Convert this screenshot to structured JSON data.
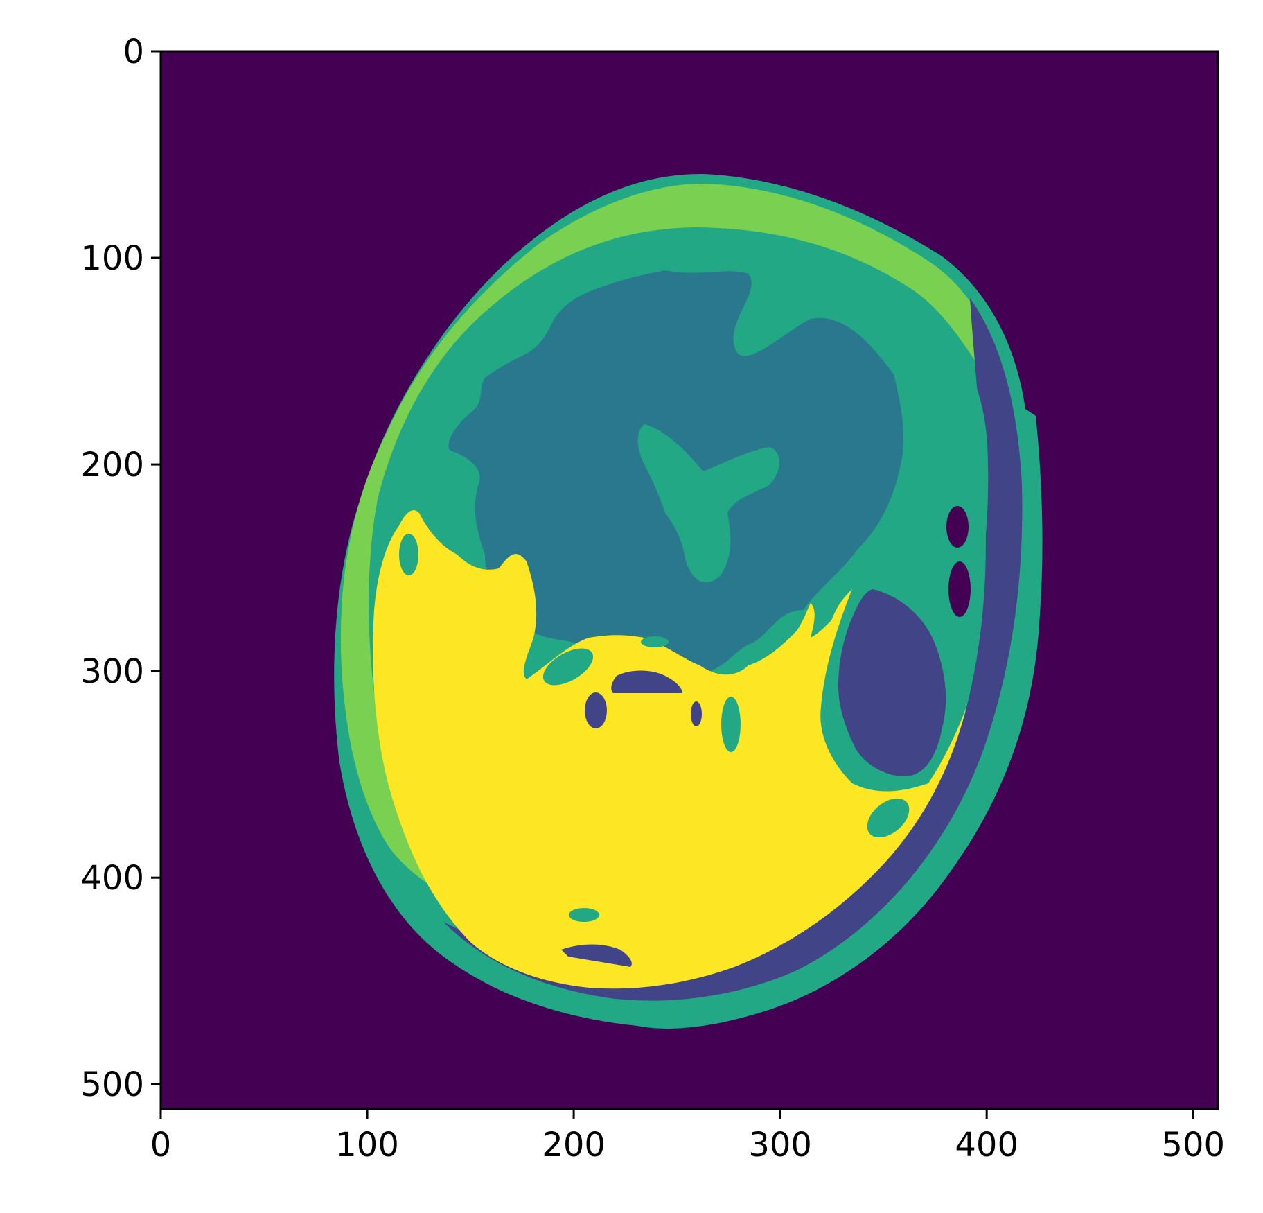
{
  "chart_data": {
    "type": "heatmap",
    "title": "",
    "xlabel": "",
    "ylabel": "",
    "xlim": [
      0,
      512
    ],
    "ylim": [
      512,
      0
    ],
    "x_ticks": [
      0,
      100,
      200,
      300,
      400,
      500
    ],
    "y_ticks": [
      0,
      100,
      200,
      300,
      400,
      500
    ],
    "x_tick_labels": [
      "0",
      "100",
      "200",
      "300",
      "400",
      "500"
    ],
    "y_tick_labels": [
      "0",
      "100",
      "200",
      "300",
      "400",
      "500"
    ],
    "grid": false,
    "legend": "none",
    "colormap": "viridis",
    "num_levels": 6,
    "colors": {
      "level_0": "#440154",
      "level_1": "#414487",
      "level_2": "#2a788e",
      "level_3": "#22a884",
      "level_4": "#7ad151",
      "level_5": "#fde725"
    }
  }
}
